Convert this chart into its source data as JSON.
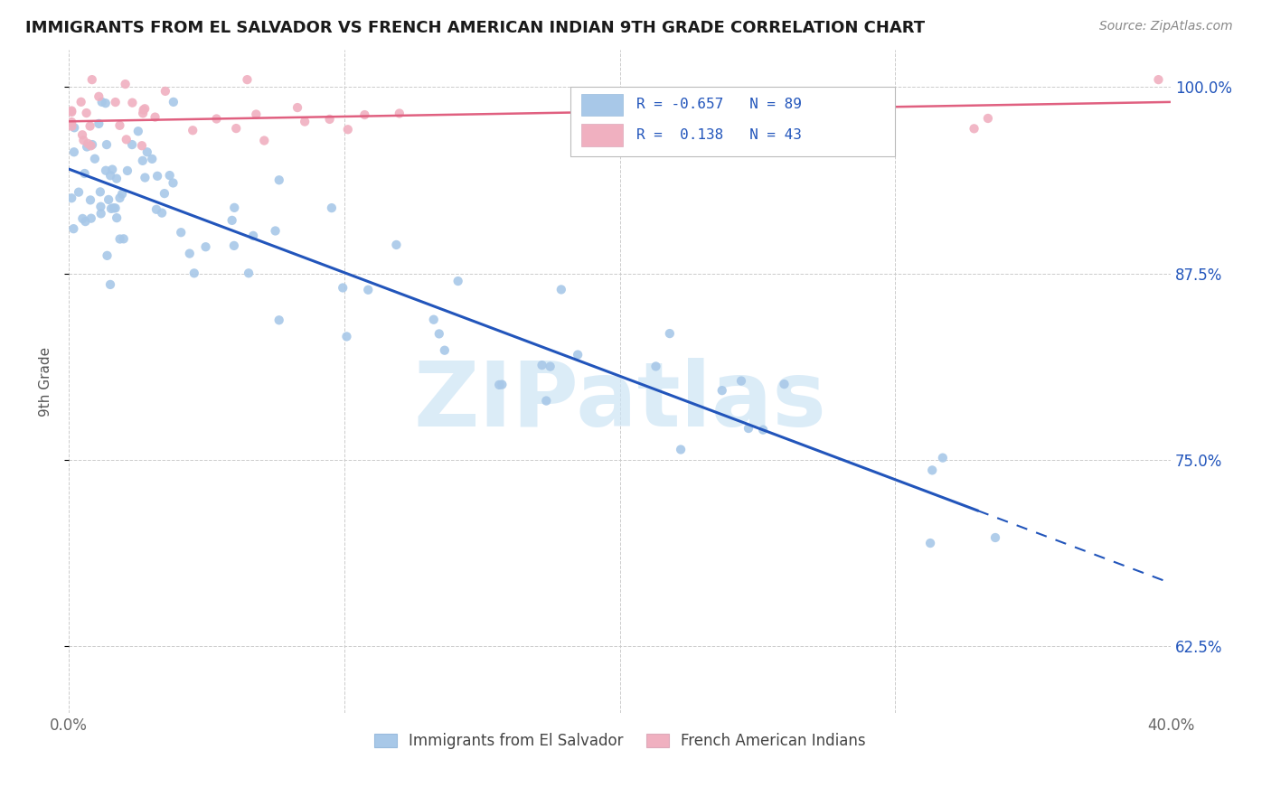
{
  "title": "IMMIGRANTS FROM EL SALVADOR VS FRENCH AMERICAN INDIAN 9TH GRADE CORRELATION CHART",
  "source": "Source: ZipAtlas.com",
  "ylabel": "9th Grade",
  "xlim": [
    0.0,
    0.4
  ],
  "ylim": [
    0.58,
    1.025
  ],
  "yticks": [
    0.625,
    0.75,
    0.875,
    1.0
  ],
  "ytick_labels": [
    "62.5%",
    "75.0%",
    "87.5%",
    "100.0%"
  ],
  "xticks": [
    0.0,
    0.1,
    0.2,
    0.3,
    0.4
  ],
  "xtick_labels": [
    "0.0%",
    "",
    "",
    "",
    "40.0%"
  ],
  "blue_R": -0.657,
  "blue_N": 89,
  "pink_R": 0.138,
  "pink_N": 43,
  "blue_color": "#a8c8e8",
  "pink_color": "#f0b0c0",
  "blue_line_color": "#2255bb",
  "pink_line_color": "#e06080",
  "watermark_color": "#cce4f5",
  "legend_label_blue": "Immigrants from El Salvador",
  "legend_label_pink": "French American Indians",
  "blue_line_x0": 0.0,
  "blue_line_y0": 0.945,
  "blue_line_x1": 0.36,
  "blue_line_y1": 0.695,
  "blue_line_solid_end": 0.33,
  "pink_line_x0": 0.0,
  "pink_line_y0": 0.977,
  "pink_line_x1": 0.4,
  "pink_line_y1": 0.99
}
